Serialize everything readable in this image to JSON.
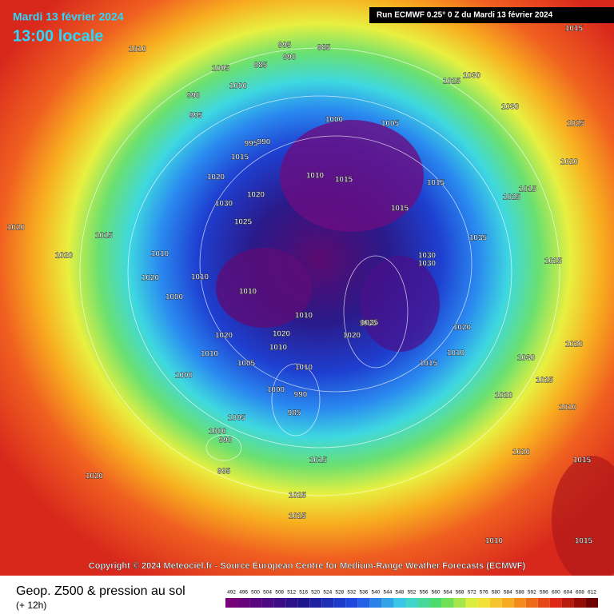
{
  "header": {
    "date": "Mardi 13 février 2024",
    "time": "13:00 locale",
    "run": "Run ECMWF 0.25° 0 Z du Mardi 13 février 2024"
  },
  "map": {
    "pressure_labels": [
      1010,
      995,
      985,
      990,
      985,
      1005,
      1000,
      990,
      995,
      1030,
      1025,
      1030,
      1015,
      1025,
      1005,
      1000,
      995,
      990,
      1015,
      1020,
      1030,
      1020,
      1000,
      1010,
      1015,
      1020,
      1010,
      1015,
      1025,
      1020,
      1020,
      1010,
      1035,
      1030,
      1035,
      1020,
      1010,
      1020,
      1010,
      1010,
      1020,
      1005,
      1000,
      1010,
      1035,
      1030,
      1015,
      1010,
      1020,
      1000,
      990,
      985,
      1005,
      1000,
      990,
      995,
      1015,
      1020,
      1020,
      1025,
      1030,
      1025,
      1020,
      1015,
      1020,
      1015,
      1010,
      1025,
      1010,
      1015,
      1025,
      1015,
      1020,
      1025,
      1015,
      1010
    ]
  },
  "copyright": "Copyright © 2024 Meteociel.fr - Source European Centre for Medium-Range Weather Forecasts (ECMWF)",
  "footer": {
    "title": "Geop. Z500 & pression au sol",
    "subtitle": "(+ 12h)",
    "scale": [
      492,
      496,
      500,
      504,
      508,
      512,
      516,
      520,
      524,
      528,
      532,
      536,
      540,
      544,
      548,
      552,
      556,
      560,
      564,
      568,
      572,
      576,
      580,
      584,
      588,
      592,
      596,
      600,
      604,
      608,
      612
    ]
  }
}
